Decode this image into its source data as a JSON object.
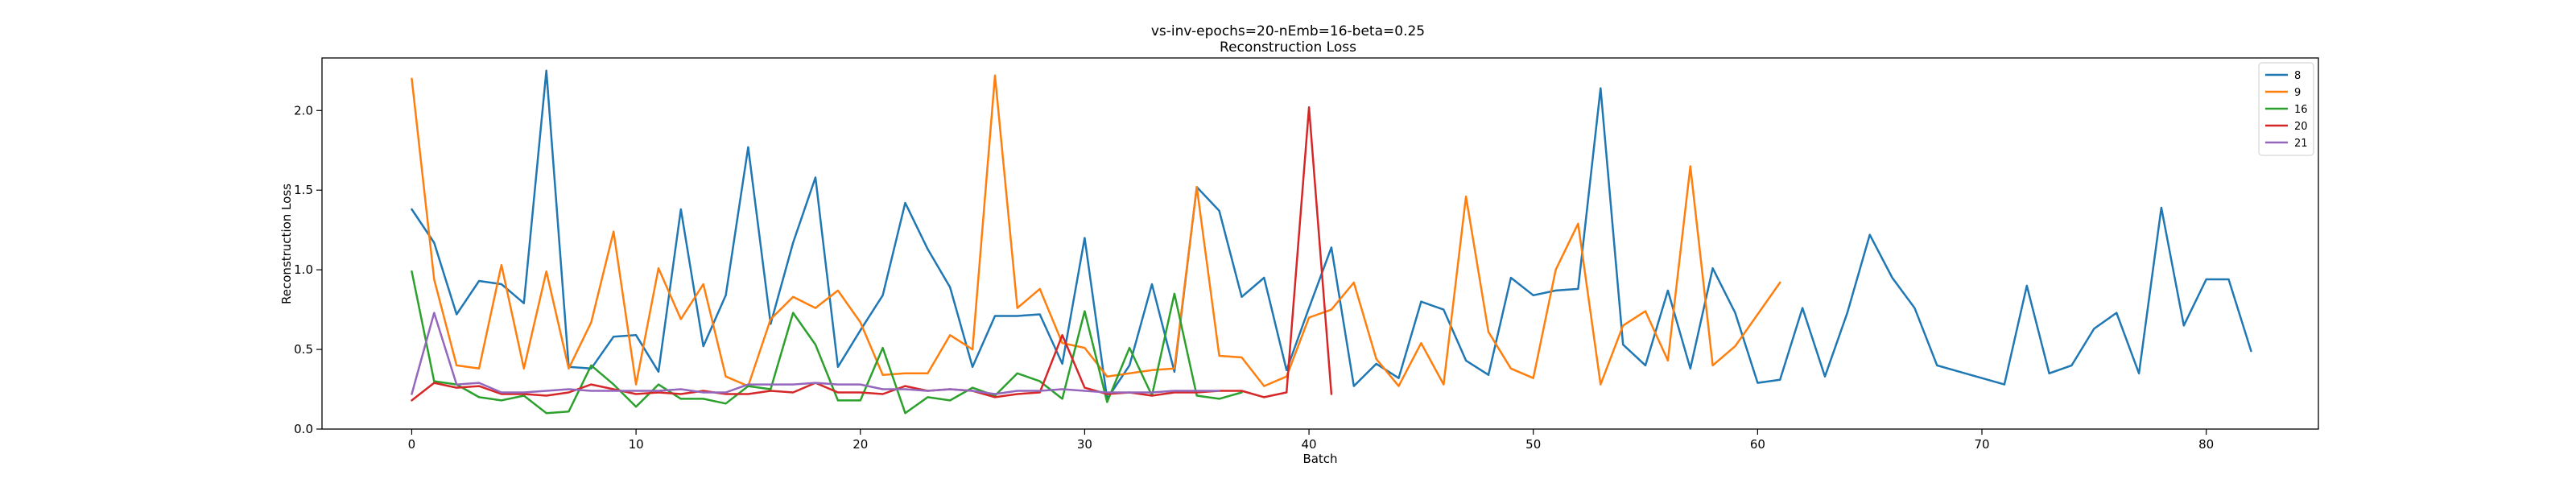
{
  "chart_data": {
    "type": "line",
    "title": "vs-inv-epochs=20-nEmb=16-beta=0.25",
    "subtitle": "Reconstruction Loss",
    "xlabel": "Batch",
    "ylabel": "Reconstruction Loss",
    "xlim": [
      -4,
      85
    ],
    "ylim": [
      0,
      2.33
    ],
    "xticks": [
      0,
      10,
      20,
      30,
      40,
      50,
      60,
      70,
      80
    ],
    "yticks": [
      0.0,
      0.5,
      1.0,
      1.5,
      2.0
    ],
    "grid": false,
    "legend_position": "top-right",
    "series": [
      {
        "name": "8",
        "color": "#1f77b4",
        "values": [
          1.38,
          1.17,
          0.72,
          0.93,
          0.91,
          0.79,
          2.25,
          0.39,
          0.38,
          0.58,
          0.59,
          0.36,
          1.38,
          0.52,
          0.84,
          1.77,
          0.66,
          1.17,
          1.58,
          0.39,
          0.62,
          0.84,
          1.42,
          1.13,
          0.89,
          0.39,
          0.71,
          0.71,
          0.72,
          0.41,
          1.2,
          0.19,
          0.4,
          0.91,
          0.36,
          1.52,
          1.37,
          0.83,
          0.95,
          0.37,
          0.76,
          1.14,
          0.27,
          0.41,
          0.32,
          0.8,
          0.75,
          0.43,
          0.34,
          0.95,
          0.84,
          0.87,
          0.88,
          2.14,
          0.53,
          0.4,
          0.87,
          0.38,
          1.01,
          0.73,
          0.29,
          0.31,
          0.76,
          0.33,
          0.73,
          1.22,
          0.95,
          0.76,
          0.4,
          0.36,
          0.32,
          0.28,
          0.9,
          0.35,
          0.4,
          0.63,
          0.73,
          0.35,
          1.39,
          0.65,
          0.94,
          0.94,
          0.49
        ]
      },
      {
        "name": "9",
        "color": "#ff7f0e",
        "values": [
          2.2,
          0.94,
          0.4,
          0.38,
          1.03,
          0.38,
          0.99,
          0.38,
          0.67,
          1.24,
          0.28,
          1.01,
          0.69,
          0.91,
          0.33,
          0.27,
          0.69,
          0.83,
          0.76,
          0.87,
          0.67,
          0.34,
          0.35,
          0.35,
          0.59,
          0.5,
          2.22,
          0.76,
          0.88,
          0.54,
          0.51,
          0.33,
          0.35,
          0.37,
          0.38,
          1.52,
          0.46,
          0.45,
          0.27,
          0.33,
          0.7,
          0.75,
          0.92,
          0.44,
          0.27,
          0.54,
          0.28,
          1.46,
          0.61,
          0.38,
          0.32,
          1.0,
          1.29,
          0.28,
          0.65,
          0.74,
          0.43,
          1.65,
          0.4,
          0.52,
          0.72,
          0.92
        ]
      },
      {
        "name": "16",
        "color": "#2ca02c",
        "values": [
          0.99,
          0.3,
          0.28,
          0.2,
          0.18,
          0.21,
          0.1,
          0.11,
          0.4,
          0.28,
          0.14,
          0.28,
          0.19,
          0.19,
          0.16,
          0.27,
          0.25,
          0.73,
          0.53,
          0.18,
          0.18,
          0.51,
          0.1,
          0.2,
          0.18,
          0.26,
          0.21,
          0.35,
          0.3,
          0.19,
          0.74,
          0.17,
          0.51,
          0.21,
          0.85,
          0.21,
          0.19,
          0.23
        ]
      },
      {
        "name": "20",
        "color": "#d62728",
        "values": [
          0.18,
          0.29,
          0.26,
          0.27,
          0.22,
          0.22,
          0.21,
          0.23,
          0.28,
          0.25,
          0.22,
          0.23,
          0.22,
          0.24,
          0.22,
          0.22,
          0.24,
          0.23,
          0.29,
          0.23,
          0.23,
          0.22,
          0.27,
          0.24,
          0.25,
          0.24,
          0.2,
          0.22,
          0.23,
          0.59,
          0.26,
          0.22,
          0.23,
          0.21,
          0.23,
          0.23,
          0.24,
          0.24,
          0.2,
          0.23,
          2.02,
          0.22
        ]
      },
      {
        "name": "21",
        "color": "#9467bd",
        "values": [
          0.22,
          0.73,
          0.28,
          0.29,
          0.23,
          0.23,
          0.24,
          0.25,
          0.24,
          0.24,
          0.24,
          0.24,
          0.25,
          0.23,
          0.23,
          0.28,
          0.28,
          0.28,
          0.29,
          0.28,
          0.28,
          0.25,
          0.25,
          0.24,
          0.25,
          0.24,
          0.22,
          0.24,
          0.24,
          0.25,
          0.24,
          0.23,
          0.23,
          0.23,
          0.24,
          0.24,
          0.24
        ]
      }
    ]
  }
}
